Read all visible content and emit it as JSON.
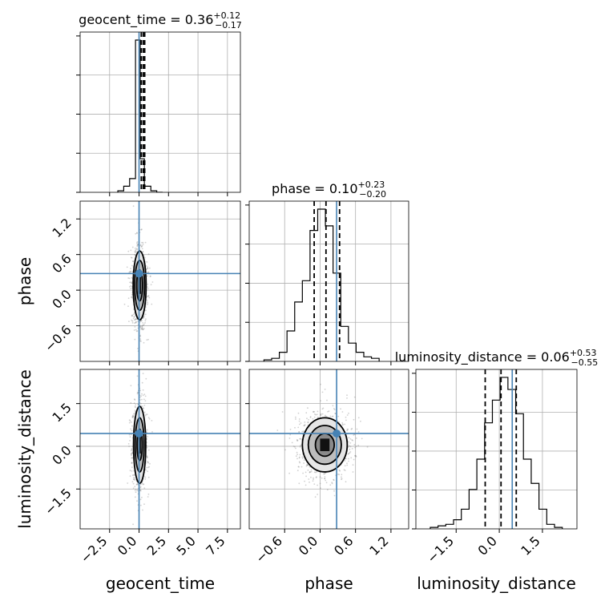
{
  "chart_data": {
    "type": "corner",
    "truth_color": "#4682b4",
    "parameters": [
      "geocent_time",
      "phase",
      "luminosity_distance"
    ],
    "axis_labels": [
      "geocent_time",
      "phase",
      "luminosity_distance"
    ],
    "titles": [
      {
        "name": "geocent_time",
        "median": "0.36",
        "plus": "+0.12",
        "minus": "−0.17"
      },
      {
        "name": "phase",
        "median": "0.10",
        "plus": "+0.23",
        "minus": "−0.20"
      },
      {
        "name": "luminosity_distance",
        "median": "0.06",
        "plus": "+0.53",
        "minus": "−0.55"
      }
    ],
    "ranges": {
      "geocent_time": [
        -5.0,
        8.6
      ],
      "phase": [
        -1.2,
        1.5
      ],
      "luminosity_distance": [
        -2.9,
        2.7
      ]
    },
    "ticks": {
      "geocent_time": {
        "values": [
          -2.5,
          0.0,
          2.5,
          5.0,
          7.5
        ],
        "labels": [
          "−2.5",
          "0.0",
          "2.5",
          "5.0",
          "7.5"
        ]
      },
      "phase": {
        "values": [
          -0.6,
          0.0,
          0.6,
          1.2
        ],
        "labels": [
          "−0.6",
          "0.0",
          "0.6",
          "1.2"
        ]
      },
      "luminosity_distance": {
        "values": [
          -1.5,
          0.0,
          1.5
        ],
        "labels": [
          "−1.5",
          "0.0",
          "1.5"
        ]
      }
    },
    "truths": {
      "geocent_time": 0.0,
      "phase": 0.28,
      "luminosity_distance": 0.45
    },
    "quantiles": {
      "geocent_time": [
        0.19,
        0.36,
        0.48
      ],
      "phase": [
        -0.1,
        0.1,
        0.33
      ],
      "luminosity_distance": [
        -0.49,
        0.06,
        0.59
      ]
    },
    "histograms": {
      "geocent_time": {
        "edges": [
          -1.8,
          -1.3,
          -0.8,
          -0.3,
          0.1,
          0.45,
          1.0,
          1.5,
          2.0
        ],
        "counts": [
          0.01,
          0.04,
          0.09,
          1.0,
          0.22,
          0.04,
          0.01,
          0.0
        ]
      },
      "phase": {
        "edges": [
          -0.95,
          -0.82,
          -0.69,
          -0.56,
          -0.43,
          -0.3,
          -0.17,
          -0.04,
          0.09,
          0.22,
          0.35,
          0.48,
          0.61,
          0.74,
          0.87,
          1.0
        ],
        "counts": [
          0.01,
          0.02,
          0.06,
          0.2,
          0.39,
          0.53,
          0.86,
          1.0,
          0.89,
          0.58,
          0.23,
          0.12,
          0.06,
          0.03,
          0.02
        ]
      },
      "luminosity_distance": {
        "edges": [
          -2.4,
          -2.13,
          -1.86,
          -1.59,
          -1.32,
          -1.05,
          -0.78,
          -0.51,
          -0.24,
          0.03,
          0.3,
          0.57,
          0.84,
          1.11,
          1.38,
          1.65,
          1.92,
          2.19
        ],
        "counts": [
          0.01,
          0.02,
          0.03,
          0.06,
          0.13,
          0.26,
          0.46,
          0.7,
          0.85,
          1.0,
          0.92,
          0.76,
          0.46,
          0.3,
          0.13,
          0.03,
          0.01
        ]
      }
    },
    "contours_2d": [
      {
        "x": "geocent_time",
        "y": "phase",
        "center": [
          0.05,
          0.08
        ],
        "radii": [
          [
            0.25,
            0.26
          ],
          [
            0.42,
            0.42
          ],
          [
            0.55,
            0.58
          ]
        ]
      },
      {
        "x": "geocent_time",
        "y": "luminosity_distance",
        "center": [
          0.05,
          0.05
        ],
        "radii": [
          [
            0.22,
            0.55
          ],
          [
            0.38,
            0.95
          ],
          [
            0.52,
            1.35
          ]
        ]
      },
      {
        "x": "phase",
        "y": "luminosity_distance",
        "center": [
          0.08,
          0.05
        ],
        "radii": [
          [
            0.16,
            0.4
          ],
          [
            0.28,
            0.68
          ],
          [
            0.38,
            0.95
          ]
        ]
      }
    ],
    "grid": true
  }
}
